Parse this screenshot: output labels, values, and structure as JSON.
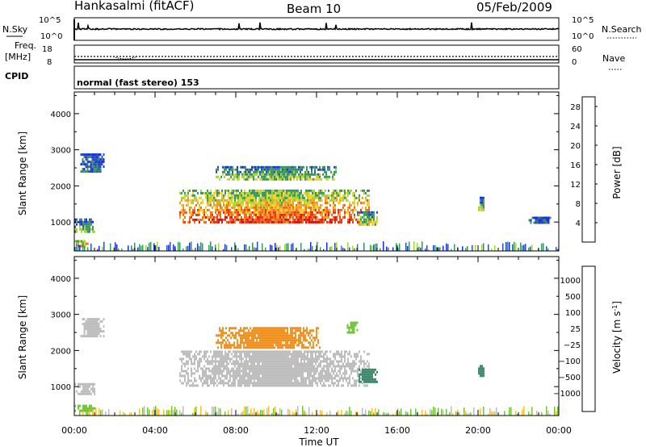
{
  "header": {
    "station": "Hankasalmi (fitACF)",
    "beam": "Beam 10",
    "date": "05/Feb/2009"
  },
  "top_panels": {
    "nsky_label": "N.Sky",
    "nsky_ticks": [
      "10^5",
      "10^0"
    ],
    "nsearch_label": "N.Search",
    "nsearch_ticks": [
      "10^5",
      "10^0"
    ],
    "freq_label_1": "Freq.",
    "freq_label_2": "[MHz]",
    "freq_ticks": [
      "18",
      "8"
    ],
    "nave_label": "Nave",
    "nave_ticks": [
      "60",
      "0"
    ],
    "cpid_label": "CPID",
    "cpid_text": "normal (fast stereo) 153"
  },
  "axes": {
    "x_ticks": [
      "00:00",
      "04:00",
      "08:00",
      "12:00",
      "16:00",
      "20:00",
      "00:00"
    ],
    "x_label": "Time UT",
    "y_ticks": [
      "1000",
      "2000",
      "3000",
      "4000"
    ],
    "y_label": "Slant Range [km]"
  },
  "power_bar": {
    "title": "Power [dB]",
    "ticks": [
      "4",
      "8",
      "12",
      "16",
      "20",
      "24",
      "28"
    ],
    "colors": [
      "#1a2cf2",
      "#2a4fb5",
      "#3f8a6d",
      "#33a15c",
      "#a8d437",
      "#f5d12a",
      "#f39a25",
      "#ee6a1c",
      "#e8331a",
      "#e01010"
    ]
  },
  "velocity_bar": {
    "title": "Velocity [m s",
    "title_sup": "-1",
    "title_end": "]",
    "ticks": [
      "1000",
      "500",
      "100",
      "25",
      "−25",
      "−100",
      "−500",
      "−1000"
    ],
    "colors": [
      "#2038c8",
      "#3a5faa",
      "#3f8a6d",
      "#72c43a",
      "#bdbdbd",
      "#f5c22a",
      "#f0901f",
      "#ea5a1a",
      "#e01010"
    ]
  },
  "chart_data": [
    {
      "type": "heatmap",
      "title": "",
      "xlabel": "Time UT",
      "ylabel": "Slant Range [km]",
      "colorbar_label": "Power [dB]",
      "xlim": [
        0,
        24
      ],
      "ylim": [
        200,
        4600
      ],
      "color_range": [
        0,
        30
      ],
      "x_ticks": [
        "00:00",
        "04:00",
        "08:00",
        "12:00",
        "16:00",
        "20:00",
        "00:00"
      ],
      "y_ticks": [
        1000,
        2000,
        3000,
        4000
      ],
      "regions": [
        {
          "t0": 5.2,
          "t1": 14.6,
          "r0": 1000,
          "r1": 1900,
          "value": 22
        },
        {
          "t0": 7.0,
          "t1": 13.0,
          "r0": 2150,
          "r1": 2550,
          "value": 12
        },
        {
          "t0": 0.3,
          "t1": 1.5,
          "r0": 2400,
          "r1": 2900,
          "value": 6
        },
        {
          "t0": 0.0,
          "t1": 1.0,
          "r0": 700,
          "r1": 1100,
          "value": 10
        },
        {
          "t0": 0.0,
          "t1": 0.8,
          "r0": 300,
          "r1": 500,
          "value": 26
        },
        {
          "t0": 14.0,
          "t1": 15.0,
          "r0": 900,
          "r1": 1300,
          "value": 14
        },
        {
          "t0": 20.0,
          "t1": 20.3,
          "r0": 1300,
          "r1": 1700,
          "value": 10
        },
        {
          "t0": 22.5,
          "t1": 23.6,
          "r0": 1000,
          "r1": 1150,
          "value": 6
        }
      ]
    },
    {
      "type": "heatmap",
      "title": "",
      "xlabel": "Time UT",
      "ylabel": "Slant Range [km]",
      "colorbar_label": "Velocity [m s^-1]",
      "xlim": [
        0,
        24
      ],
      "ylim": [
        200,
        4600
      ],
      "color_range": [
        -1000,
        1000
      ],
      "x_ticks": [
        "00:00",
        "04:00",
        "08:00",
        "12:00",
        "16:00",
        "20:00",
        "00:00"
      ],
      "y_ticks": [
        1000,
        2000,
        3000,
        4000
      ],
      "regions": [
        {
          "t0": 5.2,
          "t1": 14.6,
          "r0": 1000,
          "r1": 2000,
          "value": 0
        },
        {
          "t0": 7.0,
          "t1": 12.2,
          "r0": 2050,
          "r1": 2650,
          "value": -300
        },
        {
          "t0": 0.3,
          "t1": 1.5,
          "r0": 2400,
          "r1": 2900,
          "value": 0
        },
        {
          "t0": 0.0,
          "t1": 1.0,
          "r0": 800,
          "r1": 1100,
          "value": 0
        },
        {
          "t0": 0.0,
          "t1": 1.0,
          "r0": 300,
          "r1": 500,
          "value": 60
        },
        {
          "t0": 14.0,
          "t1": 15.0,
          "r0": 1100,
          "r1": 1500,
          "value": 120
        },
        {
          "t0": 20.0,
          "t1": 20.3,
          "r0": 1300,
          "r1": 1600,
          "value": 300
        },
        {
          "t0": 13.5,
          "t1": 14.0,
          "r0": 2500,
          "r1": 2800,
          "value": 80
        }
      ]
    }
  ]
}
